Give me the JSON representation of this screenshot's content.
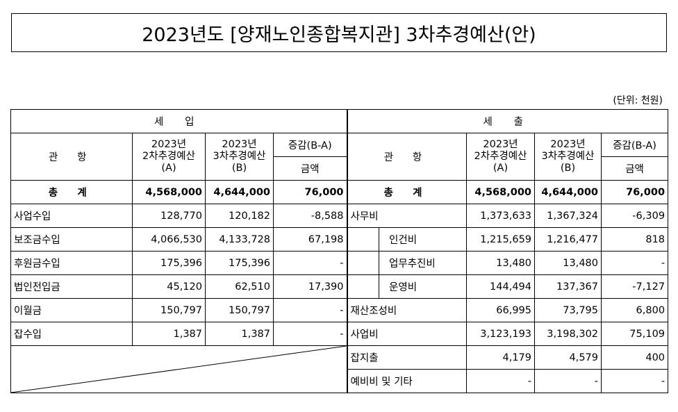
{
  "title": "2023년도 [양재노인종합복지관] 3차추경예산(안)",
  "unit": "(단위: 천원)",
  "income": {
    "section": "세  입",
    "col_item": "관  항",
    "col_a_l1": "2023년",
    "col_a_l2": "2차추경예산",
    "col_a_l3": "(A)",
    "col_b_l1": "2023년",
    "col_b_l2": "3차추경예산",
    "col_b_l3": "(B)",
    "col_diff": "증감(B-A)",
    "col_diff_sub": "금액",
    "total": {
      "label": "총  계",
      "a": "4,568,000",
      "b": "4,644,000",
      "diff": "76,000"
    },
    "rows": [
      {
        "label": "사업수입",
        "a": "128,770",
        "b": "120,182",
        "diff": "-8,588"
      },
      {
        "label": "보조금수입",
        "a": "4,066,530",
        "b": "4,133,728",
        "diff": "67,198"
      },
      {
        "label": "후원금수입",
        "a": "175,396",
        "b": "175,396",
        "diff": "-"
      },
      {
        "label": "법인전입금",
        "a": "45,120",
        "b": "62,510",
        "diff": "17,390"
      },
      {
        "label": "이월금",
        "a": "150,797",
        "b": "150,797",
        "diff": "-"
      },
      {
        "label": "잡수입",
        "a": "1,387",
        "b": "1,387",
        "diff": "-"
      }
    ]
  },
  "expense": {
    "section": "세  출",
    "col_item": "관  항",
    "col_a_l1": "2023년",
    "col_a_l2": "2차추경예산",
    "col_a_l3": "(A)",
    "col_b_l1": "2023년",
    "col_b_l2": "3차추경예산",
    "col_b_l3": "(B)",
    "col_diff": "증감(B-A)",
    "col_diff_sub": "금액",
    "total": {
      "label": "총  계",
      "a": "4,568,000",
      "b": "4,644,000",
      "diff": "76,000"
    },
    "rows": [
      {
        "label": "사무비",
        "a": "1,373,633",
        "b": "1,367,324",
        "diff": "-6,309"
      },
      {
        "label": "인건비",
        "a": "1,215,659",
        "b": "1,216,477",
        "diff": "818"
      },
      {
        "label": "업무추진비",
        "a": "13,480",
        "b": "13,480",
        "diff": "-"
      },
      {
        "label": "운영비",
        "a": "144,494",
        "b": "137,367",
        "diff": "-7,127"
      },
      {
        "label": "재산조성비",
        "a": "66,995",
        "b": "73,795",
        "diff": "6,800"
      },
      {
        "label": "사업비",
        "a": "3,123,193",
        "b": "3,198,302",
        "diff": "75,109"
      },
      {
        "label": "잡지출",
        "a": "4,179",
        "b": "4,579",
        "diff": "400"
      },
      {
        "label": "예비비 및 기타",
        "a": "-",
        "b": "-",
        "diff": "-"
      }
    ]
  }
}
